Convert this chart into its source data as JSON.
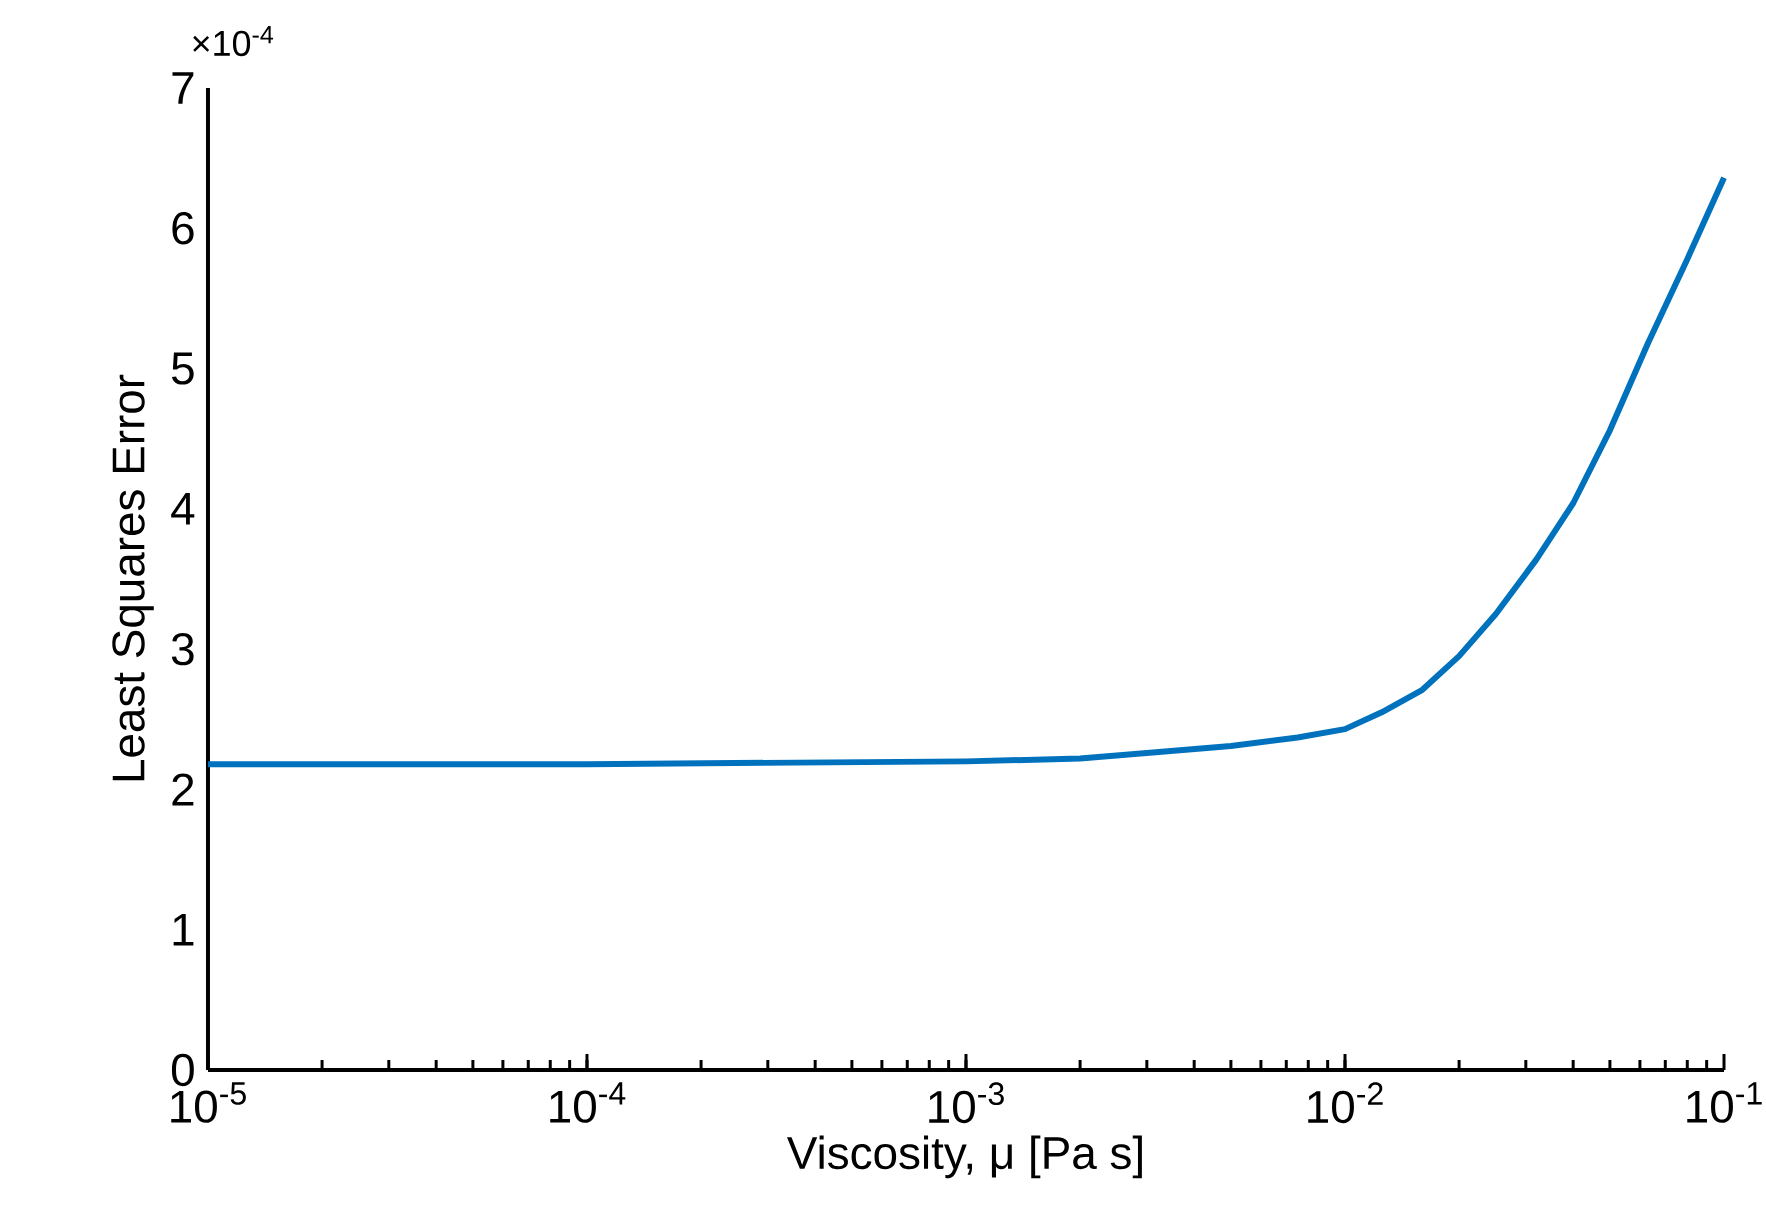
{
  "chart_data": {
    "type": "line",
    "xlabel": "Viscosity, μ [Pa s]",
    "ylabel": "Least Squares Error",
    "annotations": [
      "×10$^{-4}$"
    ],
    "log": "x",
    "xlim": [
      1e-05,
      0.1
    ],
    "ylim": [
      0,
      7
    ],
    "xticks": [
      {
        "value": 1e-05,
        "label": "10$^{-5}$"
      },
      {
        "value": 0.0001,
        "label": "10$^{-4}$"
      },
      {
        "value": 0.001,
        "label": "10$^{-3}$"
      },
      {
        "value": 0.01,
        "label": "10$^{-2}$"
      },
      {
        "value": 0.1,
        "label": "10$^{-1}$"
      }
    ],
    "yticks": [
      0,
      1,
      2,
      3,
      4,
      5,
      6,
      7
    ],
    "series": [
      {
        "color": "#0072bd",
        "x": [
          1e-05,
          0.0001,
          0.001,
          0.002,
          0.003,
          0.005,
          0.0075,
          0.01,
          0.0125,
          0.016,
          0.02,
          0.025,
          0.032,
          0.04,
          0.05,
          0.063,
          0.08,
          0.1
        ],
        "values": [
          2.18,
          2.18,
          2.2,
          2.22,
          2.26,
          2.31,
          2.37,
          2.43,
          2.55,
          2.71,
          2.95,
          3.25,
          3.64,
          4.04,
          4.56,
          5.18,
          5.78,
          6.36
        ]
      }
    ]
  }
}
